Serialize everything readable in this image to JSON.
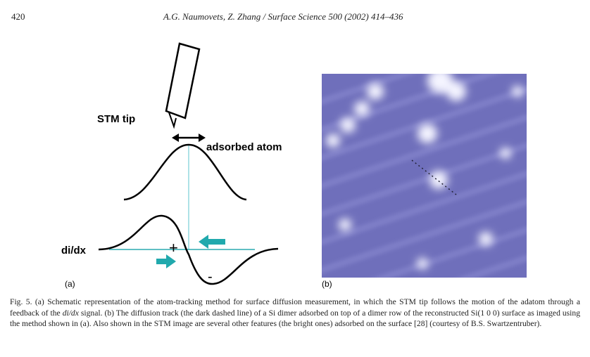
{
  "header": {
    "page_number": "420",
    "running_title": "A.G. Naumovets, Z. Zhang / Surface Science 500 (2002) 414–436"
  },
  "figure": {
    "panel_a": {
      "tip_label": "STM tip",
      "atom_label": "adsorbed atom",
      "signal_label": "di/dx",
      "plus": "+",
      "minus": "-",
      "label": "(a)"
    },
    "panel_b": {
      "label": "(b)"
    },
    "caption": [
      "Fig. 5. (a) Schematic representation of the atom-tracking method for surface diffusion measurement, in which the STM tip follows the motion of the adatom through a feedback of the ",
      "di/dx",
      " signal. (b) The diffusion track (the dark dashed line) of a Si dimer adsorbed on top of a dimer row of the reconstructed Si(1 0 0) surface as imaged using the method shown in (a). Also shown in the STM image are several other features (the bright ones) adsorbed on the surface [28] (courtesy of B.S. Swartzentruber)."
    ]
  }
}
